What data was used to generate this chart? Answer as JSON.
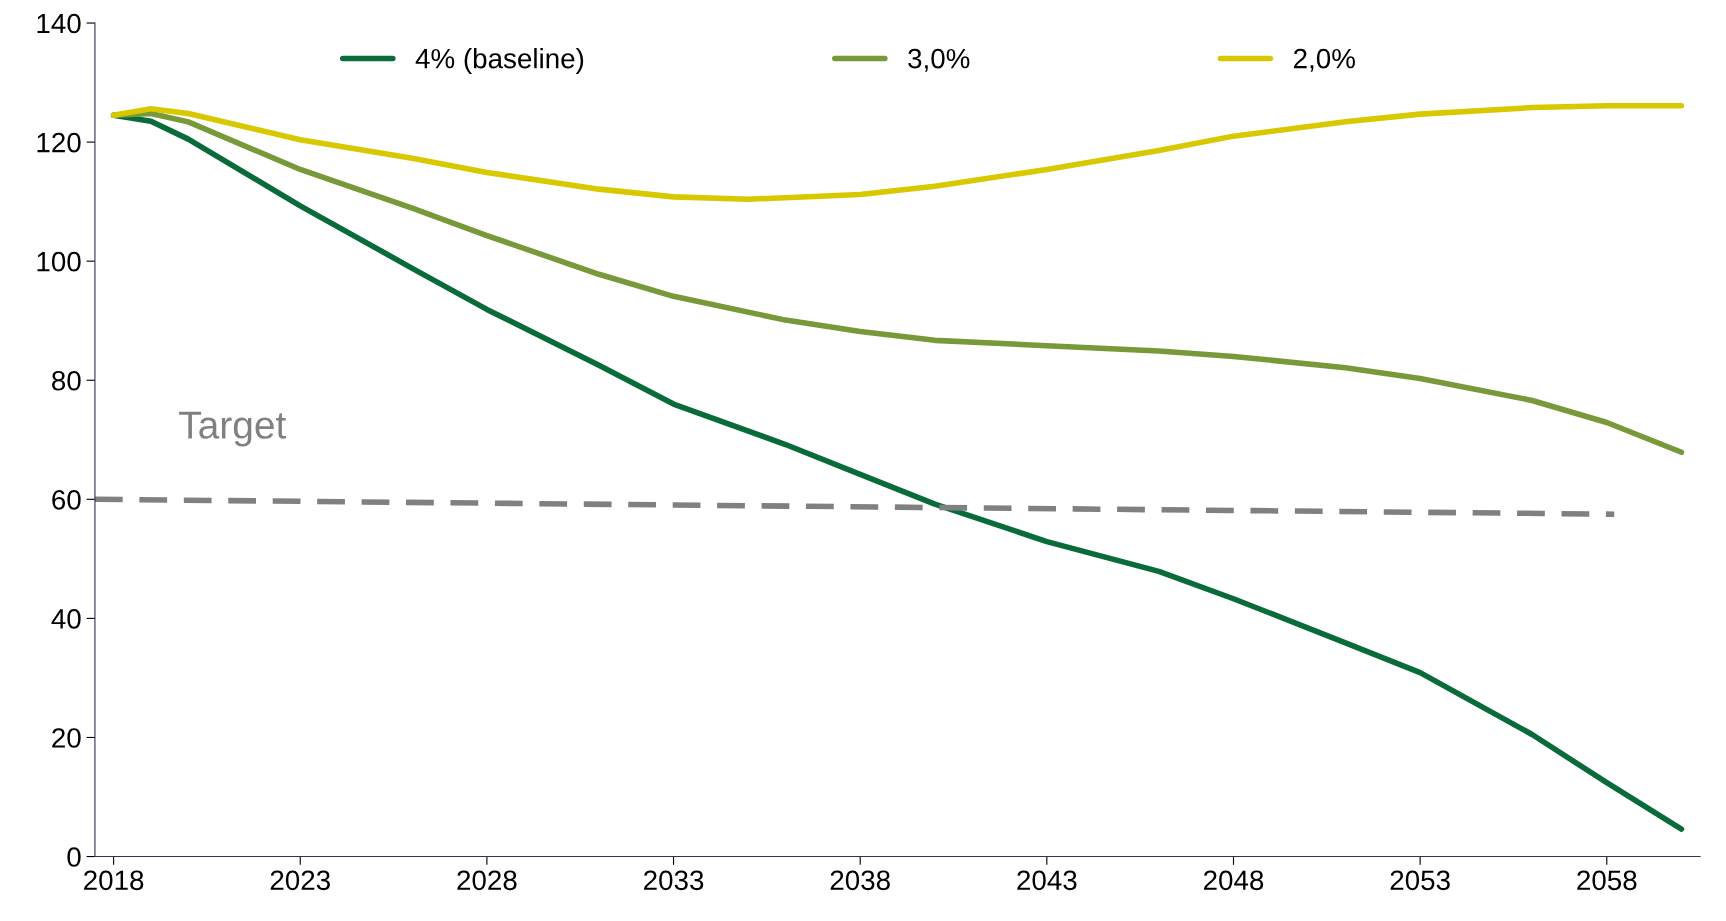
{
  "chart_data": {
    "type": "line",
    "xlim": [
      2017.5,
      2060.5
    ],
    "xticks": [
      2018,
      2023,
      2028,
      2033,
      2038,
      2043,
      2048,
      2053,
      2058
    ],
    "ylim": [
      0,
      140
    ],
    "yticks": [
      0,
      20,
      40,
      60,
      80,
      100,
      120,
      140
    ],
    "grid": false,
    "legend": "top",
    "marker": "none",
    "series": [
      {
        "name": "4% (baseline)",
        "color": "#0a6b3a",
        "x": [
          2018,
          2019,
          2020,
          2023,
          2026,
          2028,
          2031,
          2033,
          2036,
          2038,
          2040,
          2043,
          2046,
          2048,
          2051,
          2053,
          2056,
          2058,
          2060
        ],
        "values": [
          124.5,
          123.5,
          120.5,
          109.3,
          98.8,
          91.9,
          82.5,
          76,
          69.2,
          64.2,
          59.2,
          52.9,
          47.9,
          43.3,
          35.9,
          30.9,
          20.5,
          12.4,
          4.6
        ]
      },
      {
        "name": "3,0%",
        "color": "#77993a",
        "x": [
          2018,
          2019,
          2020,
          2023,
          2026,
          2028,
          2031,
          2033,
          2036,
          2038,
          2040,
          2043,
          2046,
          2048,
          2051,
          2053,
          2056,
          2058,
          2060
        ],
        "values": [
          124.5,
          124.8,
          123.4,
          115.4,
          108.9,
          104.3,
          97.8,
          94.1,
          90.1,
          88.2,
          86.7,
          85.8,
          84.9,
          84,
          82.1,
          80.3,
          76.6,
          72.9,
          67.9
        ]
      },
      {
        "name": "2,0%",
        "color": "#d8c800",
        "x": [
          2018,
          2019,
          2020,
          2023,
          2026,
          2028,
          2031,
          2033,
          2035,
          2038,
          2040,
          2043,
          2046,
          2048,
          2051,
          2053,
          2056,
          2058,
          2060
        ],
        "values": [
          124.5,
          125.6,
          124.8,
          120.4,
          117.3,
          114.9,
          112.1,
          110.8,
          110.4,
          111.2,
          112.6,
          115.4,
          118.6,
          121,
          123.4,
          124.7,
          125.8,
          126.1,
          126.1
        ]
      },
      {
        "name": "Target",
        "color": "#808080",
        "line_style": "dashed",
        "x": [
          2017.5,
          2058.2
        ],
        "values": [
          60,
          57.5
        ]
      }
    ]
  }
}
